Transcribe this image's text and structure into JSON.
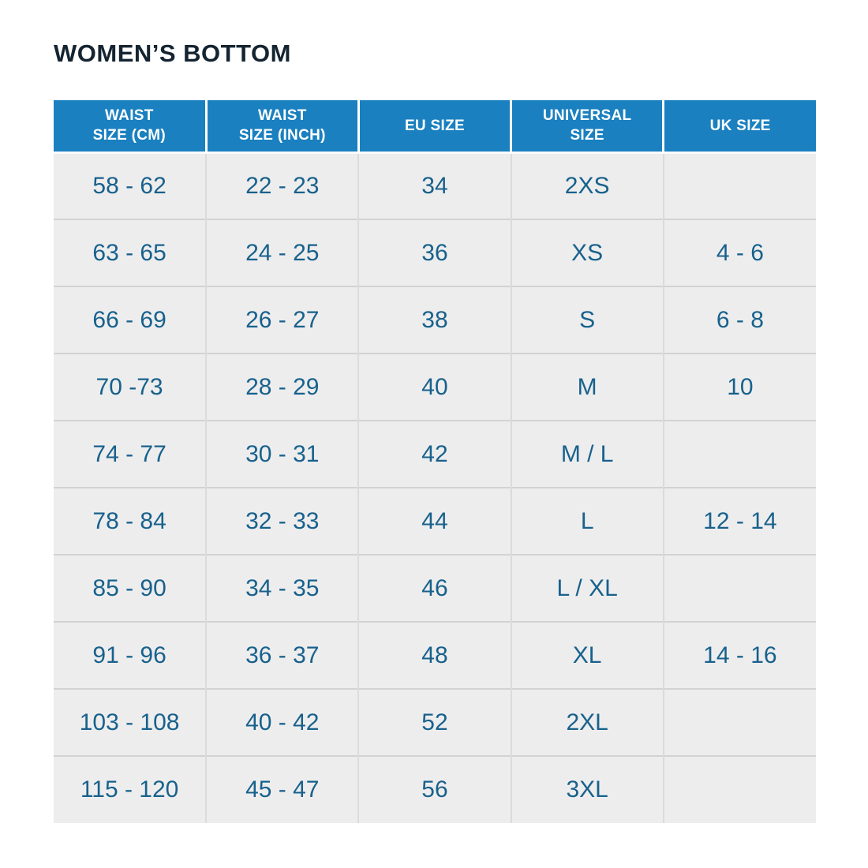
{
  "page": {
    "title": "WOMEN’S BOTTOM"
  },
  "table": {
    "columns": [
      "WAIST\nSIZE (CM)",
      "WAIST\nSIZE (INCH)",
      "EU SIZE",
      "UNIVERSAL\nSIZE",
      "UK SIZE"
    ],
    "rows": [
      [
        "58 - 62",
        "22 - 23",
        "34",
        "2XS",
        ""
      ],
      [
        "63 - 65",
        "24 - 25",
        "36",
        "XS",
        "4 - 6"
      ],
      [
        "66 - 69",
        "26 - 27",
        "38",
        "S",
        "6 - 8"
      ],
      [
        "70 -73",
        "28 - 29",
        "40",
        "M",
        "10"
      ],
      [
        "74 - 77",
        "30 - 31",
        "42",
        "M / L",
        ""
      ],
      [
        "78 - 84",
        "32 - 33",
        "44",
        "L",
        "12 - 14"
      ],
      [
        "85 - 90",
        "34 - 35",
        "46",
        "L / XL",
        ""
      ],
      [
        "91 - 96",
        "36 - 37",
        "48",
        "XL",
        "14 - 16"
      ],
      [
        "103 - 108",
        "40 - 42",
        "52",
        "2XL",
        ""
      ],
      [
        "115 - 120",
        "45 - 47",
        "56",
        "3XL",
        ""
      ]
    ]
  },
  "colors": {
    "header_bg": "#1a80c0",
    "header_text": "#ffffff",
    "body_text": "#18618c",
    "row_bg": "#ededee",
    "title_text": "#152431",
    "grid_horizontal": "#d2d2d2",
    "grid_vertical": "#dbdbdb"
  }
}
